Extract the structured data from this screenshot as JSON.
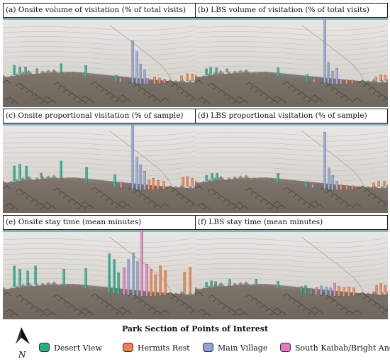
{
  "panels": [
    {
      "id": "a",
      "title": "(a) Onsite volume of visitation (% of total visits)"
    },
    {
      "id": "b",
      "title": "(b) LBS volume of visitation (% of total visits)"
    },
    {
      "id": "c",
      "title": "(c) Onsite proportional visitation (% of sample)"
    },
    {
      "id": "d",
      "title": "(d) LBS proportional visitation (% of sample)"
    },
    {
      "id": "e",
      "title": "(e) Onsite stay time (mean minutes)"
    },
    {
      "id": "f",
      "title": "(f) LBS stay time (mean minutes)"
    }
  ],
  "legend": {
    "title": "Park Section of Points of Interest",
    "items": [
      {
        "label": "Desert View",
        "color": "#1fb28a"
      },
      {
        "label": "Hermits Rest",
        "color": "#f2804a"
      },
      {
        "label": "Main Village",
        "color": "#8fa2d4"
      },
      {
        "label": "South Kaibab/Bright Angel",
        "color": "#e776c2"
      }
    ]
  },
  "north_arrow": {
    "label": "N"
  },
  "colors": {
    "terrain_light": "#dedad6",
    "terrain_dark": "#6e655c",
    "sky": "#eceae7",
    "frame": "#1a1a1a"
  }
}
